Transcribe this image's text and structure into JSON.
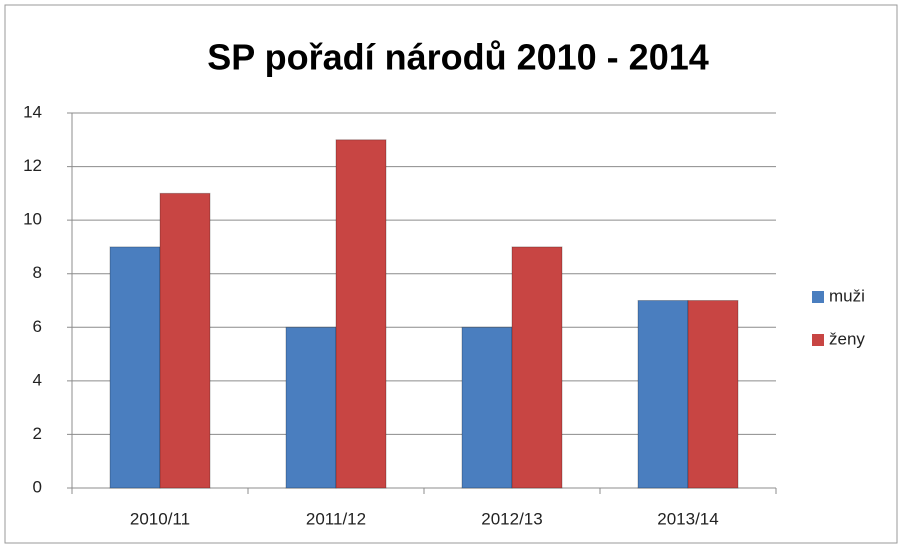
{
  "chart_data": {
    "type": "bar",
    "title": "SP pořadí národů 2010 - 2014",
    "categories": [
      "2010/11",
      "2011/12",
      "2012/13",
      "2013/14"
    ],
    "series": [
      {
        "name": "muži",
        "color": "#4a7ebf",
        "values": [
          9,
          6,
          6,
          7
        ]
      },
      {
        "name": "ženy",
        "color": "#c84543",
        "values": [
          11,
          13,
          9,
          7
        ]
      }
    ],
    "ylim": [
      0,
      14
    ],
    "yticks": [
      0,
      2,
      4,
      6,
      8,
      10,
      12,
      14
    ],
    "grid": true,
    "legend": "right"
  }
}
